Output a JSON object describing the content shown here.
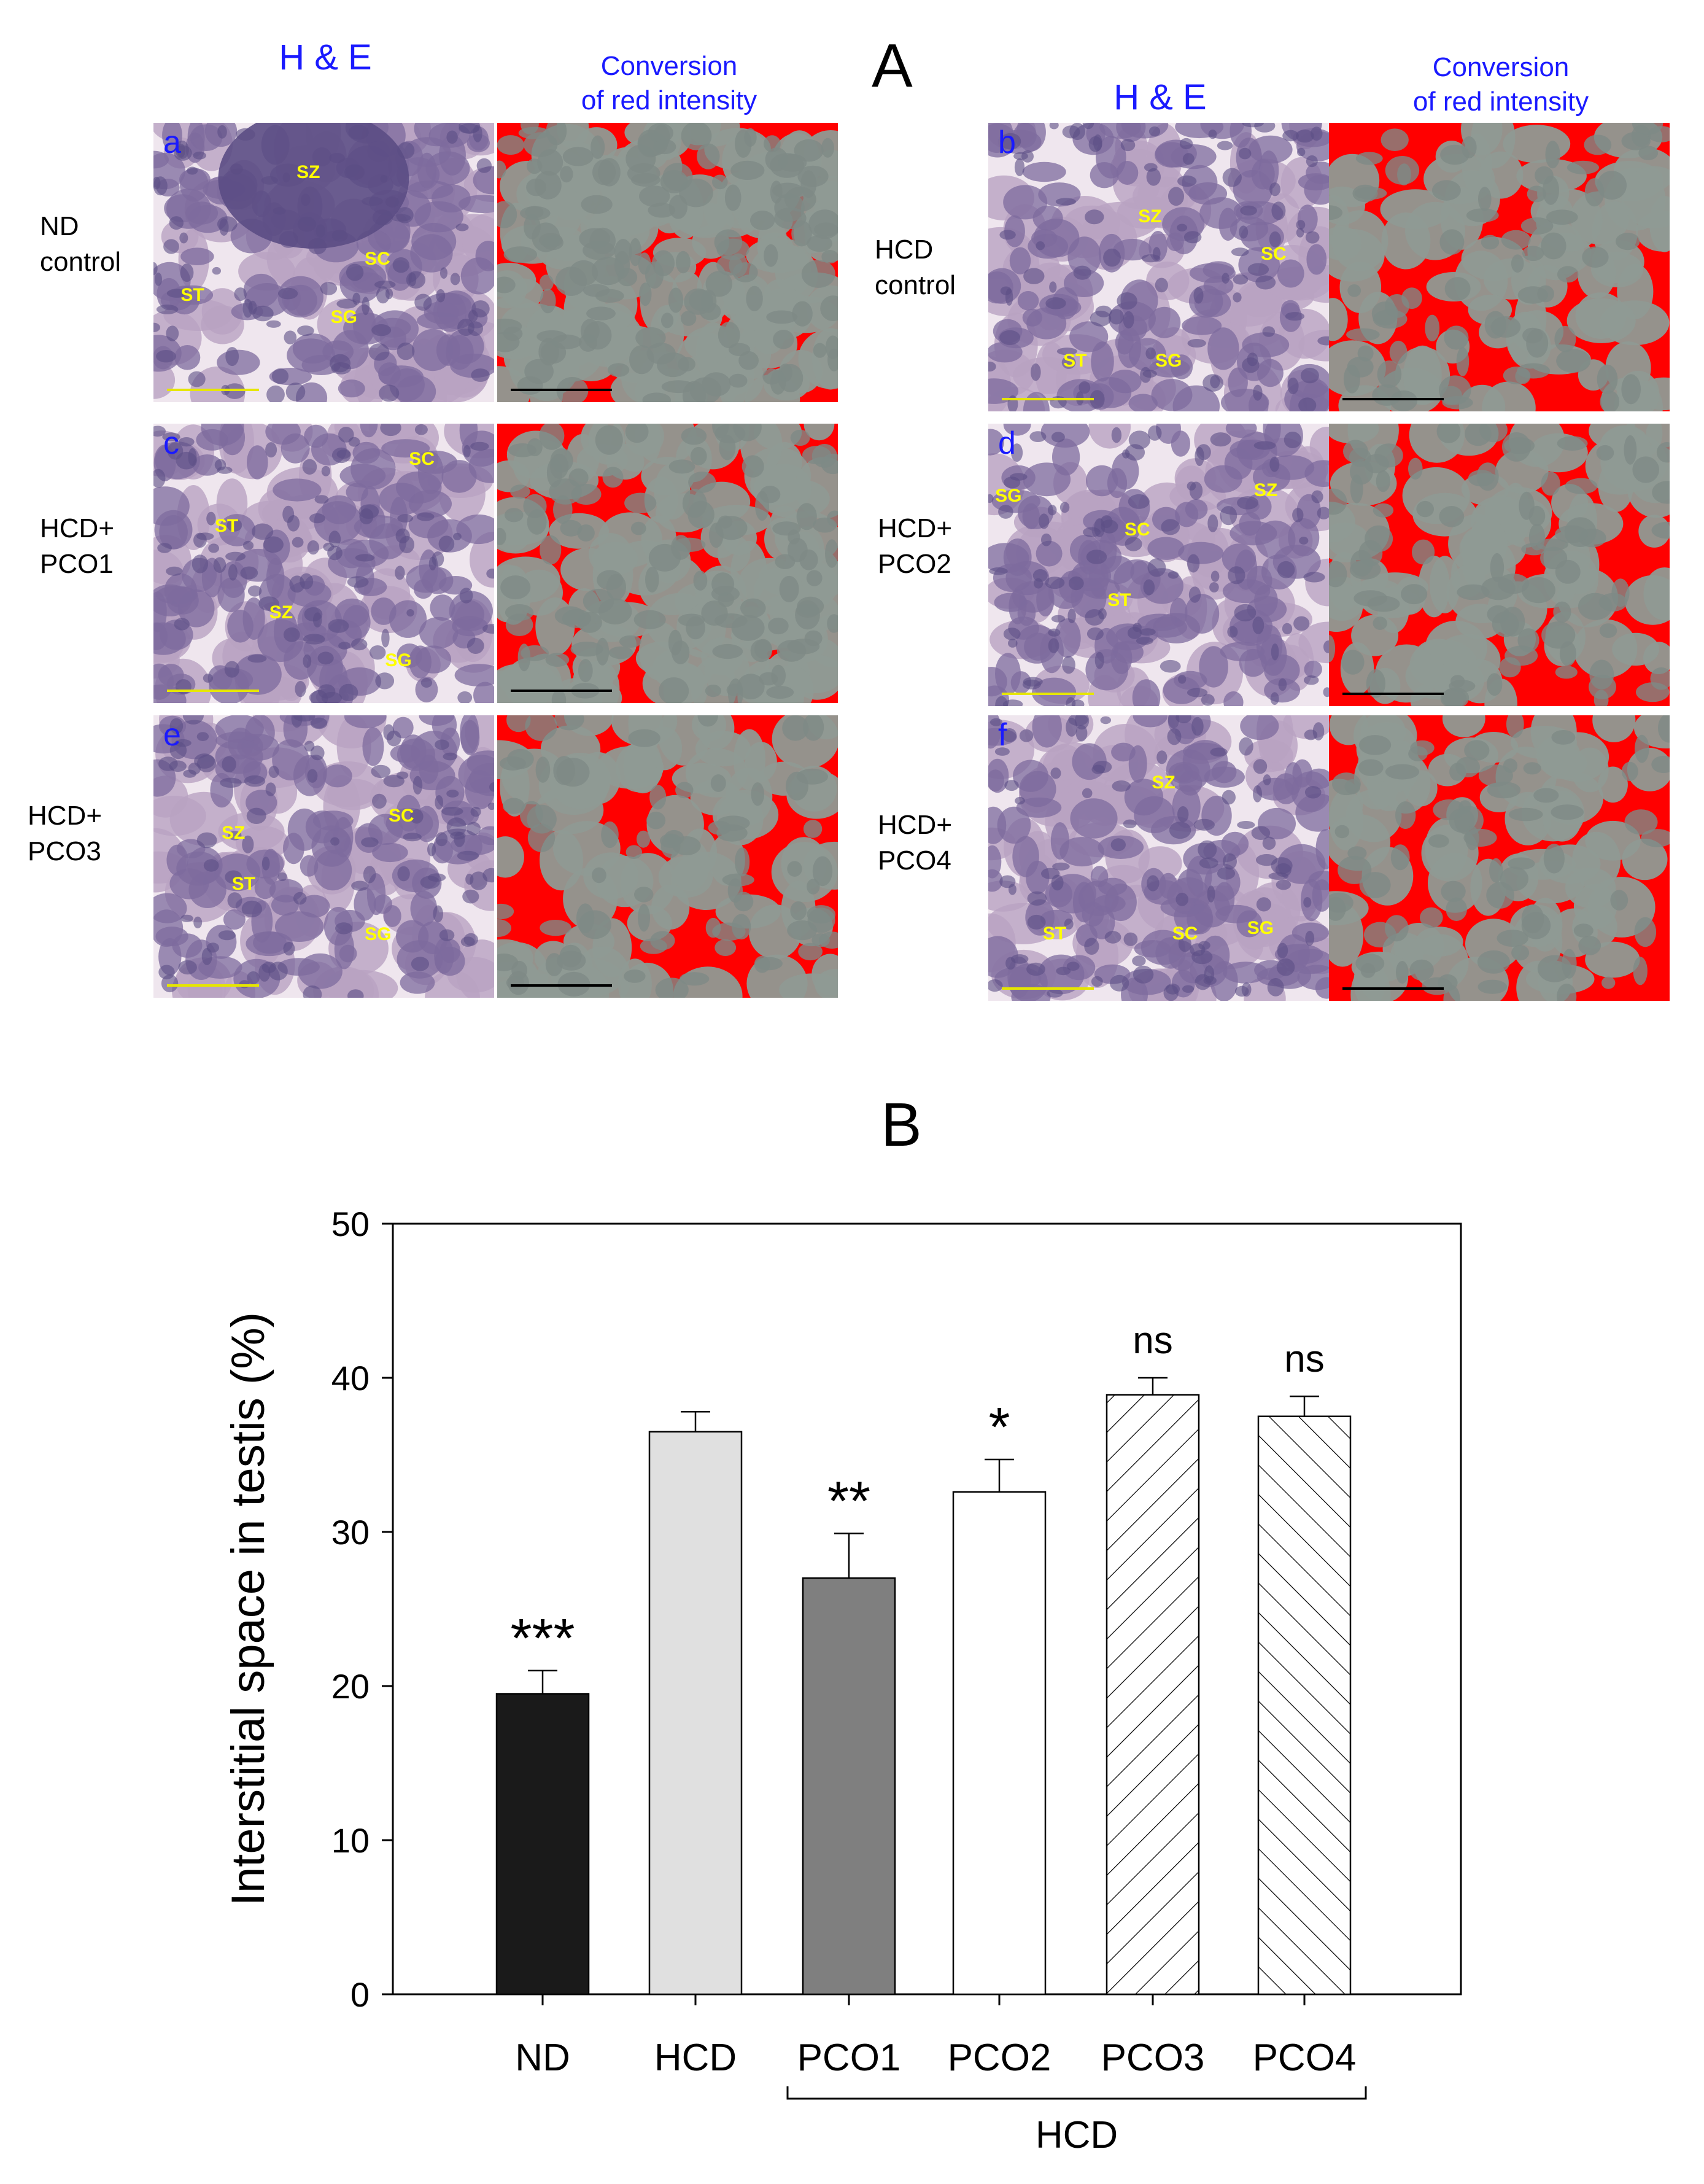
{
  "panel_a": {
    "letter": "A",
    "columns": {
      "he": "H & E",
      "conversion_1": "Conversion",
      "conversion_2": "of red intensity"
    },
    "groups": [
      {
        "sub": "a",
        "row_label_1": "ND",
        "row_label_2": "control",
        "tissue_labels": [
          "SZ",
          "SC",
          "ST",
          "SG"
        ]
      },
      {
        "sub": "b",
        "row_label_1": "HCD",
        "row_label_2": "control",
        "tissue_labels": [
          "SZ",
          "SC",
          "ST",
          "SG"
        ]
      },
      {
        "sub": "c",
        "row_label_1": "HCD+",
        "row_label_2": "PCO1",
        "tissue_labels": [
          "SC",
          "ST",
          "SZ",
          "SG"
        ]
      },
      {
        "sub": "d",
        "row_label_1": "HCD+",
        "row_label_2": "PCO2",
        "tissue_labels": [
          "SG",
          "SZ",
          "SC",
          "ST"
        ]
      },
      {
        "sub": "e",
        "row_label_1": "HCD+",
        "row_label_2": "PCO3",
        "tissue_labels": [
          "SZ",
          "SC",
          "ST",
          "SG"
        ]
      },
      {
        "sub": "f",
        "row_label_1": "HCD+",
        "row_label_2": "PCO4",
        "tissue_labels": [
          "SZ",
          "ST",
          "SC",
          "SG"
        ]
      }
    ]
  },
  "panel_b": {
    "letter": "B"
  },
  "chart_data": {
    "type": "bar",
    "title": "",
    "ylabel": "Interstitial space in testis (%)",
    "xlabel": "",
    "ylim": [
      0,
      50
    ],
    "yticks": [
      0,
      10,
      20,
      30,
      40,
      50
    ],
    "categories": [
      "ND",
      "HCD",
      "PCO1",
      "PCO2",
      "PCO3",
      "PCO4"
    ],
    "values": [
      19.5,
      36.5,
      27.0,
      32.6,
      38.9,
      37.5
    ],
    "errors": [
      1.5,
      1.3,
      2.9,
      2.1,
      1.1,
      1.3
    ],
    "annotations": [
      "***",
      "",
      "**",
      "*",
      "ns",
      "ns"
    ],
    "bar_fills": [
      "#1a1a1a",
      "#e0e0e0",
      "#7f7f7f",
      "#ffffff",
      "hatch-forward",
      "hatch-backward"
    ],
    "group_bracket": {
      "label": "HCD",
      "from": "PCO1",
      "to": "PCO4"
    },
    "grid": false,
    "legend": "none"
  },
  "colors": {
    "label_blue": "#1a1aff",
    "tissue_yellow": "#ffff00",
    "red": "#ff0000",
    "tissue_purple": "#7d6b9e"
  }
}
